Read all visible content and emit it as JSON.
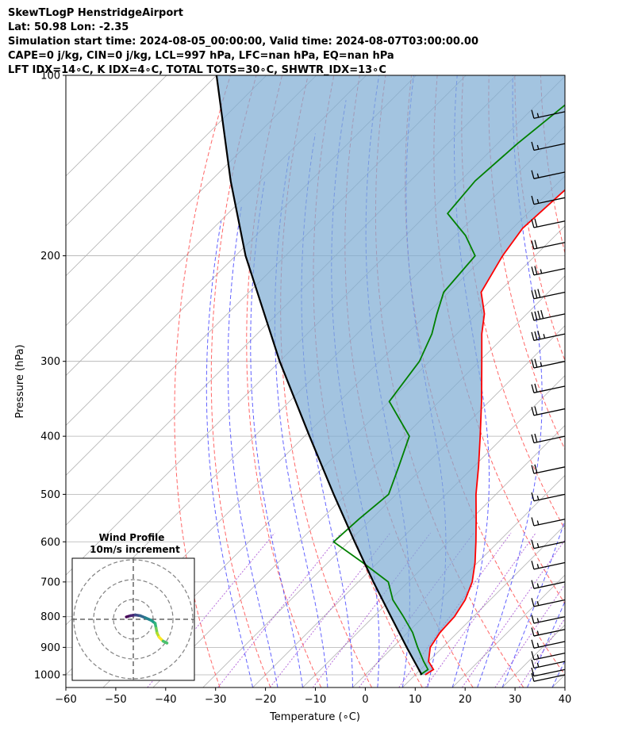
{
  "header": {
    "title": "SkewTLogP HenstridgeAirport",
    "location": "Lat: 50.98   Lon: -2.35",
    "times": "Simulation start time: 2024-08-05_00:00:00, Valid time: 2024-08-07T03:00:00.00",
    "indices1": "CAPE=0 j/kg, CIN=0 j/kg, LCL=997 hPa, LFC=nan hPa, EQ=nan hPa",
    "indices2": "LFT IDX=14∘C, K IDX=4∘C, TOTAL TOTS=30∘C, SHWTR_IDX=13∘C"
  },
  "chart_data": {
    "type": "skewt",
    "xlabel": "Temperature (∘C)",
    "ylabel": "Pressure (hPa)",
    "xlim": [
      -60,
      40
    ],
    "ylim": [
      1050,
      100
    ],
    "xticks": [
      "−60",
      "−50",
      "−40",
      "−30",
      "−20",
      "−10",
      "0",
      "10",
      "20",
      "30",
      "40"
    ],
    "yticks": [
      "1000",
      "900",
      "800",
      "700",
      "600",
      "500",
      "400",
      "300",
      "200",
      "100"
    ],
    "grid": true,
    "series": [
      {
        "role": "temperature",
        "color": "#ff0000",
        "points": [
          [
            1000,
            12
          ],
          [
            980,
            12.6
          ],
          [
            950,
            10
          ],
          [
            900,
            7.5
          ],
          [
            850,
            6.5
          ],
          [
            800,
            6.2
          ],
          [
            750,
            5
          ],
          [
            700,
            2.8
          ],
          [
            650,
            -0.5
          ],
          [
            600,
            -4.5
          ],
          [
            550,
            -9
          ],
          [
            500,
            -14
          ],
          [
            450,
            -19
          ],
          [
            400,
            -24.8
          ],
          [
            350,
            -31.5
          ],
          [
            300,
            -39.5
          ],
          [
            270,
            -45
          ],
          [
            250,
            -48.5
          ],
          [
            230,
            -53.5
          ],
          [
            200,
            -56.5
          ],
          [
            180,
            -58
          ],
          [
            150,
            -57
          ],
          [
            130,
            -57
          ],
          [
            110,
            -55.5
          ],
          [
            100,
            -55
          ]
        ]
      },
      {
        "role": "dewpoint",
        "color": "#008000",
        "points": [
          [
            1000,
            11
          ],
          [
            980,
            11.5
          ],
          [
            950,
            9
          ],
          [
            900,
            5
          ],
          [
            850,
            1
          ],
          [
            800,
            -4
          ],
          [
            750,
            -9.5
          ],
          [
            700,
            -14
          ],
          [
            650,
            -23
          ],
          [
            600,
            -33
          ],
          [
            550,
            -32.5
          ],
          [
            500,
            -31.5
          ],
          [
            450,
            -35
          ],
          [
            400,
            -39
          ],
          [
            350,
            -50
          ],
          [
            300,
            -52
          ],
          [
            270,
            -55
          ],
          [
            250,
            -58
          ],
          [
            230,
            -61
          ],
          [
            200,
            -62
          ],
          [
            185,
            -68
          ],
          [
            170,
            -76
          ],
          [
            150,
            -77
          ],
          [
            130,
            -76
          ],
          [
            110,
            -74
          ],
          [
            100,
            -74
          ]
        ]
      },
      {
        "role": "parcel",
        "color": "#000000",
        "points": [
          [
            1000,
            11.3
          ],
          [
            900,
            2.8
          ],
          [
            800,
            -6.5
          ],
          [
            700,
            -17
          ],
          [
            600,
            -28.8
          ],
          [
            500,
            -42.5
          ],
          [
            400,
            -59
          ],
          [
            300,
            -80
          ],
          [
            200,
            -108
          ],
          [
            150,
            -126
          ],
          [
            100,
            -150
          ]
        ]
      }
    ],
    "wind_barbs": {
      "units": "kt",
      "levels": [
        {
          "p": 1000,
          "speed": 10
        },
        {
          "p": 980,
          "speed": 10
        },
        {
          "p": 950,
          "speed": 15
        },
        {
          "p": 920,
          "speed": 15
        },
        {
          "p": 880,
          "speed": 15
        },
        {
          "p": 840,
          "speed": 15
        },
        {
          "p": 800,
          "speed": 15
        },
        {
          "p": 750,
          "speed": 15
        },
        {
          "p": 700,
          "speed": 15
        },
        {
          "p": 650,
          "speed": 15
        },
        {
          "p": 600,
          "speed": 15
        },
        {
          "p": 550,
          "speed": 15
        },
        {
          "p": 500,
          "speed": 15
        },
        {
          "p": 450,
          "speed": 20
        },
        {
          "p": 400,
          "speed": 20
        },
        {
          "p": 360,
          "speed": 20
        },
        {
          "p": 330,
          "speed": 20
        },
        {
          "p": 300,
          "speed": 25
        },
        {
          "p": 270,
          "speed": 35
        },
        {
          "p": 250,
          "speed": 40
        },
        {
          "p": 230,
          "speed": 30
        },
        {
          "p": 210,
          "speed": 25
        },
        {
          "p": 190,
          "speed": 20
        },
        {
          "p": 175,
          "speed": 20
        },
        {
          "p": 160,
          "speed": 15
        },
        {
          "p": 145,
          "speed": 15
        },
        {
          "p": 130,
          "speed": 15
        },
        {
          "p": 115,
          "speed": 15
        }
      ]
    },
    "inset": {
      "title": "Wind Profile",
      "subtitle": "10m/s increment",
      "rings_ms": [
        10,
        20,
        30
      ],
      "hodograph_uv": [
        [
          -3.5,
          1.2
        ],
        [
          -1.5,
          1.8
        ],
        [
          1,
          2.2
        ],
        [
          3.5,
          1.8
        ],
        [
          6,
          0.8
        ],
        [
          9,
          -0.5
        ],
        [
          11,
          -2
        ],
        [
          11.5,
          -4.5
        ],
        [
          12,
          -7
        ],
        [
          13,
          -9
        ],
        [
          15,
          -11
        ],
        [
          17,
          -12
        ]
      ]
    }
  }
}
